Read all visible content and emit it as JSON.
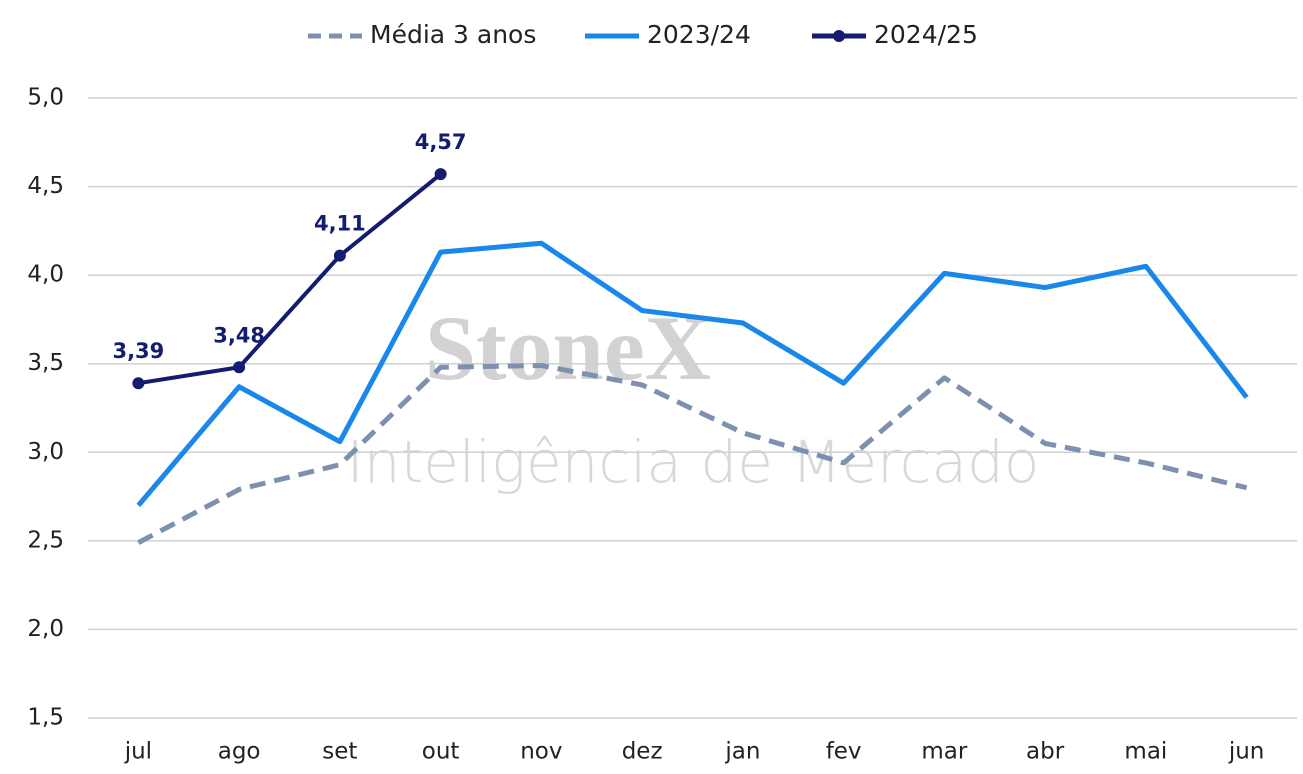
{
  "chart_data": {
    "type": "line",
    "watermark": {
      "brand": "StoneX",
      "subtitle": "Inteligência de Mercado"
    },
    "categories": [
      "jul",
      "ago",
      "set",
      "out",
      "nov",
      "dez",
      "jan",
      "fev",
      "mar",
      "abr",
      "mai",
      "jun"
    ],
    "series": [
      {
        "name": "Média 3 anos",
        "color": "#7d90b0",
        "style": "dashed",
        "marker": false,
        "values": [
          2.49,
          2.79,
          2.93,
          3.48,
          3.49,
          3.38,
          3.11,
          2.94,
          3.42,
          3.05,
          2.94,
          2.8
        ]
      },
      {
        "name": "2023/24",
        "color": "#1a87ea",
        "style": "solid",
        "marker": false,
        "values": [
          2.7,
          3.37,
          3.06,
          4.13,
          4.18,
          3.8,
          3.73,
          3.39,
          4.01,
          3.93,
          4.05,
          3.31
        ]
      },
      {
        "name": "2024/25",
        "color": "#131c6e",
        "style": "solid",
        "marker": true,
        "values": [
          3.39,
          3.48,
          4.11,
          4.57,
          null,
          null,
          null,
          null,
          null,
          null,
          null,
          null
        ],
        "value_labels": [
          "3,39",
          "3,48",
          "4,11",
          "4,57",
          null,
          null,
          null,
          null,
          null,
          null,
          null,
          null
        ]
      }
    ],
    "ylim": [
      1.5,
      5.0
    ],
    "yticks": [
      {
        "value": 1.5,
        "label": "1,5"
      },
      {
        "value": 2.0,
        "label": "2,0"
      },
      {
        "value": 2.5,
        "label": "2,5"
      },
      {
        "value": 3.0,
        "label": "3,0"
      },
      {
        "value": 3.5,
        "label": "3,5"
      },
      {
        "value": 4.0,
        "label": "4,0"
      },
      {
        "value": 4.5,
        "label": "4,5"
      },
      {
        "value": 5.0,
        "label": "5,0"
      }
    ],
    "grid": true,
    "legend": "top"
  }
}
